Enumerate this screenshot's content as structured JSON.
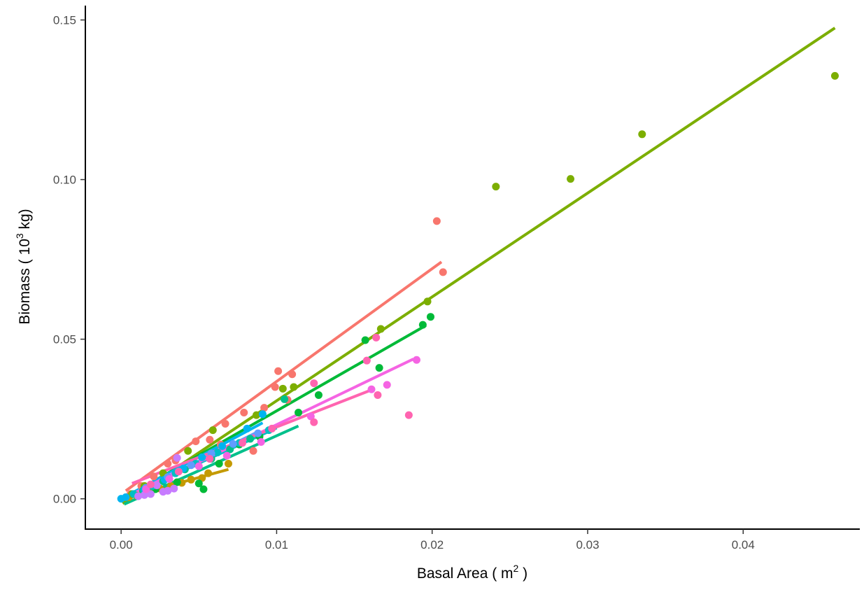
{
  "chart_data": {
    "type": "scatter",
    "title": "",
    "xlabel": "Basal Area ( m",
    "xlabel_sup": "2",
    "xlabel_end": " )",
    "ylabel": "Biomass ( 10",
    "ylabel_sup": "3",
    "ylabel_end": " kg)",
    "xlim": [
      -0.0023,
      0.0475
    ],
    "ylim": [
      -0.0095,
      0.1545
    ],
    "xticks": [
      0.0,
      0.01,
      0.02,
      0.03,
      0.04
    ],
    "xtick_labels": [
      "0.00",
      "0.01",
      "0.02",
      "0.03",
      "0.04"
    ],
    "yticks": [
      0.0,
      0.05,
      0.1,
      0.15
    ],
    "ytick_labels": [
      "0.00",
      "0.05",
      "0.10",
      "0.15"
    ],
    "grid": false,
    "legend": "none",
    "series": [
      {
        "color": "#F8766D",
        "points": [
          [
            0.0203,
            0.087
          ],
          [
            0.0207,
            0.071
          ],
          [
            0.0101,
            0.04
          ],
          [
            0.0107,
            0.031
          ],
          [
            0.0099,
            0.035
          ],
          [
            0.011,
            0.039
          ],
          [
            0.0092,
            0.0285
          ],
          [
            0.0079,
            0.027
          ],
          [
            0.0067,
            0.0235
          ],
          [
            0.0057,
            0.0185
          ],
          [
            0.0048,
            0.018
          ],
          [
            0.0035,
            0.012
          ],
          [
            0.003,
            0.011
          ],
          [
            0.0021,
            0.007
          ],
          [
            0.0013,
            0.004
          ],
          [
            0.0006,
            0.0015
          ],
          [
            0.0085,
            0.015
          ],
          [
            0.0064,
            0.017
          ]
        ],
        "fit": [
          [
            0.0003,
            0.0025
          ],
          [
            0.0206,
            0.0742
          ]
        ]
      },
      {
        "color": "#C49A00",
        "points": [
          [
            0.0069,
            0.011
          ],
          [
            0.0056,
            0.008
          ],
          [
            0.0052,
            0.0065
          ],
          [
            0.0045,
            0.006
          ],
          [
            0.0039,
            0.005
          ],
          [
            0.0032,
            0.004
          ],
          [
            0.0025,
            0.0032
          ],
          [
            0.0018,
            0.002
          ],
          [
            0.001,
            0.001
          ],
          [
            0.0005,
            0.0005
          ]
        ],
        "fit": [
          [
            0.0004,
            0.0005
          ],
          [
            0.0069,
            0.0092
          ]
        ]
      },
      {
        "color": "#7CAE00",
        "points": [
          [
            0.0459,
            0.1325
          ],
          [
            0.0335,
            0.1142
          ],
          [
            0.0289,
            0.1002
          ],
          [
            0.0241,
            0.0978
          ],
          [
            0.0197,
            0.0618
          ],
          [
            0.0167,
            0.0532
          ],
          [
            0.0111,
            0.035
          ],
          [
            0.0104,
            0.0345
          ],
          [
            0.0087,
            0.0262
          ],
          [
            0.0059,
            0.0215
          ],
          [
            0.0043,
            0.015
          ],
          [
            0.0027,
            0.008
          ],
          [
            0.0015,
            0.004
          ],
          [
            0.0007,
            0.0015
          ]
        ],
        "fit": [
          [
            0.0001,
            -0.0015
          ],
          [
            0.0459,
            0.1475
          ]
        ]
      },
      {
        "color": "#00BA38",
        "points": [
          [
            0.0199,
            0.057
          ],
          [
            0.0194,
            0.0545
          ],
          [
            0.0157,
            0.0497
          ],
          [
            0.0166,
            0.041
          ],
          [
            0.0127,
            0.0325
          ],
          [
            0.0114,
            0.027
          ],
          [
            0.0089,
            0.0195
          ],
          [
            0.0076,
            0.017
          ],
          [
            0.0063,
            0.011
          ],
          [
            0.0053,
            0.003
          ],
          [
            0.005,
            0.0048
          ],
          [
            0.0036,
            0.0052
          ],
          [
            0.0022,
            0.003
          ]
        ],
        "fit": [
          [
            0.0003,
            0.0005
          ],
          [
            0.0196,
            0.0543
          ]
        ]
      },
      {
        "color": "#00C08B",
        "points": [
          [
            0.0105,
            0.0312
          ],
          [
            0.0083,
            0.0188
          ],
          [
            0.007,
            0.0155
          ],
          [
            0.0058,
            0.0125
          ],
          [
            0.0041,
            0.0092
          ],
          [
            0.0027,
            0.0055
          ],
          [
            0.0014,
            0.0025
          ]
        ],
        "fit": [
          [
            0.0002,
            -0.0017
          ],
          [
            0.0114,
            0.0228
          ]
        ]
      },
      {
        "color": "#00BFC4",
        "points": [
          [
            0.0095,
            0.0215
          ],
          [
            0.0076,
            0.0175
          ],
          [
            0.0062,
            0.0145
          ],
          [
            0.0048,
            0.011
          ],
          [
            0.0035,
            0.008
          ],
          [
            0.002,
            0.004
          ],
          [
            0.0008,
            0.0015
          ]
        ],
        "fit": [
          [
            0.0002,
            0.0005
          ],
          [
            0.01,
            0.0222
          ]
        ]
      },
      {
        "color": "#00B4F0",
        "points": [
          [
            0.0091,
            0.0265
          ],
          [
            0.0081,
            0.022
          ],
          [
            0.0065,
            0.0165
          ],
          [
            0.0052,
            0.013
          ],
          [
            0.004,
            0.0095
          ],
          [
            0.0028,
            0.006
          ],
          [
            0.0015,
            0.003
          ],
          [
            0.0003,
            0.0005
          ],
          [
            0.0,
            0.0
          ]
        ],
        "fit": [
          [
            0.0002,
            0.0005
          ],
          [
            0.0091,
            0.0238
          ]
        ]
      },
      {
        "color": "#619CFF",
        "points": [
          [
            0.0088,
            0.0205
          ],
          [
            0.0072,
            0.0172
          ],
          [
            0.0058,
            0.0142
          ],
          [
            0.0045,
            0.0105
          ],
          [
            0.003,
            0.0068
          ],
          [
            0.0016,
            0.0035
          ]
        ],
        "fit": [
          [
            0.0003,
            0.0005
          ],
          [
            0.0088,
            0.021
          ]
        ]
      },
      {
        "color": "#C77CFF",
        "points": [
          [
            0.0036,
            0.0128
          ],
          [
            0.0034,
            0.0032
          ],
          [
            0.003,
            0.0025
          ],
          [
            0.0027,
            0.0022
          ],
          [
            0.0023,
            0.0042
          ],
          [
            0.0019,
            0.0015
          ],
          [
            0.0015,
            0.0012
          ],
          [
            0.0011,
            0.0008
          ]
        ],
        "fit": [
          [
            0.0005,
            0.0005
          ],
          [
            0.0036,
            0.0088
          ]
        ]
      },
      {
        "color": "#F564E3",
        "points": [
          [
            0.019,
            0.0435
          ],
          [
            0.0171,
            0.0357
          ],
          [
            0.0161,
            0.0343
          ],
          [
            0.0122,
            0.0258
          ],
          [
            0.009,
            0.0178
          ],
          [
            0.0068,
            0.0135
          ],
          [
            0.005,
            0.0102
          ],
          [
            0.0031,
            0.0062
          ],
          [
            0.0016,
            0.003
          ]
        ],
        "fit": [
          [
            0.0003,
            0.0005
          ],
          [
            0.0188,
            0.0438
          ]
        ]
      },
      {
        "color": "#FF64B0",
        "points": [
          [
            0.0164,
            0.0505
          ],
          [
            0.0158,
            0.0433
          ],
          [
            0.0165,
            0.0325
          ],
          [
            0.0185,
            0.0262
          ],
          [
            0.0124,
            0.0362
          ],
          [
            0.0124,
            0.024
          ],
          [
            0.0097,
            0.022
          ],
          [
            0.0078,
            0.0175
          ],
          [
            0.0057,
            0.0125
          ],
          [
            0.0037,
            0.0085
          ],
          [
            0.0019,
            0.0045
          ]
        ],
        "fit": [
          [
            0.0007,
            0.0048
          ],
          [
            0.0162,
            0.0343
          ]
        ]
      }
    ]
  }
}
